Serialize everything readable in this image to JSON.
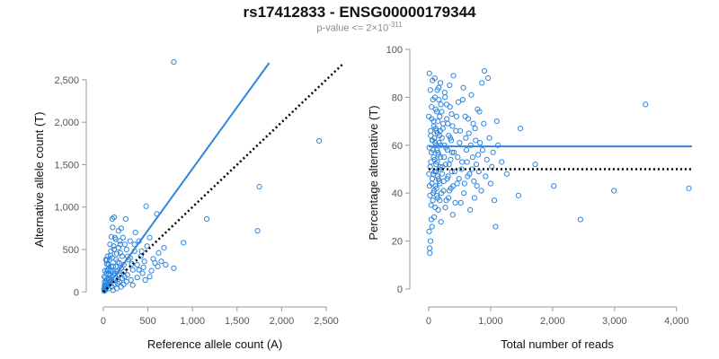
{
  "title": "rs17412833 - ENSG00000179344",
  "subtitle_prefix": "p-value <= 2×10",
  "subtitle_exponent": "-311",
  "colors": {
    "series": "#2f86de",
    "reference_line": "#000000",
    "axis": "#999999"
  },
  "chart_data": [
    {
      "type": "scatter",
      "name": "allele-counts",
      "xlabel": "Reference allele count (A)",
      "ylabel": "Alternative allele count (T)",
      "xlim": [
        -50,
        2550
      ],
      "ylim": [
        -50,
        2700
      ],
      "xticks": [
        0,
        500,
        1000,
        1500,
        2000,
        2500
      ],
      "xtick_labels": [
        "0",
        "500",
        "1,000",
        "1,500",
        "2,000",
        "2,500"
      ],
      "yticks": [
        0,
        500,
        1000,
        1500,
        2000,
        2500
      ],
      "ytick_labels": [
        "0",
        "500",
        "1,000",
        "1,500",
        "2,000",
        "2,500"
      ],
      "fit_line": {
        "x": [
          0,
          1860
        ],
        "y": [
          0,
          2700
        ]
      },
      "reference_line": {
        "x": [
          0,
          2700
        ],
        "y": [
          0,
          2700
        ]
      },
      "points": [
        [
          790,
          2710
        ],
        [
          2420,
          1780
        ],
        [
          1750,
          1240
        ],
        [
          1730,
          720
        ],
        [
          1160,
          860
        ],
        [
          900,
          580
        ],
        [
          790,
          280
        ],
        [
          560,
          390
        ],
        [
          490,
          540
        ],
        [
          520,
          640
        ],
        [
          480,
          1010
        ],
        [
          600,
          920
        ],
        [
          580,
          340
        ],
        [
          450,
          290
        ],
        [
          420,
          420
        ],
        [
          380,
          320
        ],
        [
          350,
          480
        ],
        [
          330,
          260
        ],
        [
          300,
          600
        ],
        [
          280,
          380
        ],
        [
          260,
          500
        ],
        [
          240,
          180
        ],
        [
          220,
          640
        ],
        [
          210,
          420
        ],
        [
          200,
          280
        ],
        [
          190,
          560
        ],
        [
          180,
          120
        ],
        [
          170,
          720
        ],
        [
          160,
          350
        ],
        [
          150,
          450
        ],
        [
          140,
          620
        ],
        [
          130,
          220
        ],
        [
          120,
          880
        ],
        [
          115,
          540
        ],
        [
          110,
          300
        ],
        [
          105,
          760
        ],
        [
          100,
          400
        ],
        [
          95,
          180
        ],
        [
          90,
          650
        ],
        [
          85,
          480
        ],
        [
          80,
          260
        ],
        [
          75,
          560
        ],
        [
          70,
          380
        ],
        [
          65,
          140
        ],
        [
          60,
          320
        ],
        [
          55,
          200
        ],
        [
          50,
          90
        ],
        [
          48,
          420
        ],
        [
          45,
          260
        ],
        [
          42,
          150
        ],
        [
          40,
          60
        ],
        [
          38,
          330
        ],
        [
          35,
          220
        ],
        [
          32,
          110
        ],
        [
          30,
          40
        ],
        [
          28,
          380
        ],
        [
          25,
          170
        ],
        [
          22,
          80
        ],
        [
          20,
          20
        ],
        [
          18,
          250
        ],
        [
          15,
          120
        ],
        [
          12,
          50
        ],
        [
          10,
          180
        ],
        [
          8,
          30
        ],
        [
          650,
          360
        ],
        [
          700,
          320
        ],
        [
          620,
          460
        ],
        [
          680,
          520
        ],
        [
          360,
          700
        ],
        [
          250,
          860
        ],
        [
          310,
          140
        ],
        [
          270,
          200
        ],
        [
          230,
          320
        ],
        [
          400,
          600
        ],
        [
          440,
          220
        ],
        [
          520,
          180
        ],
        [
          180,
          200
        ],
        [
          160,
          100
        ],
        [
          140,
          160
        ],
        [
          125,
          90
        ],
        [
          95,
          60
        ],
        [
          70,
          120
        ],
        [
          60,
          40
        ],
        [
          45,
          100
        ],
        [
          35,
          70
        ],
        [
          25,
          30
        ],
        [
          15,
          80
        ],
        [
          10,
          10
        ],
        [
          330,
          80
        ],
        [
          260,
          120
        ],
        [
          200,
          60
        ],
        [
          150,
          40
        ],
        [
          110,
          20
        ],
        [
          180,
          340
        ],
        [
          230,
          240
        ],
        [
          300,
          400
        ],
        [
          350,
          560
        ],
        [
          400,
          260
        ],
        [
          460,
          360
        ],
        [
          120,
          500
        ],
        [
          90,
          300
        ],
        [
          75,
          200
        ],
        [
          200,
          750
        ],
        [
          240,
          560
        ],
        [
          130,
          640
        ],
        [
          100,
          860
        ],
        [
          160,
          240
        ],
        [
          80,
          430
        ],
        [
          60,
          160
        ],
        [
          50,
          250
        ],
        [
          40,
          380
        ],
        [
          30,
          120
        ],
        [
          20,
          60
        ],
        [
          270,
          420
        ],
        [
          320,
          330
        ],
        [
          380,
          170
        ],
        [
          430,
          480
        ],
        [
          470,
          140
        ],
        [
          540,
          250
        ],
        [
          610,
          300
        ],
        [
          190,
          460
        ],
        [
          210,
          160
        ],
        [
          170,
          520
        ],
        [
          140,
          300
        ],
        [
          115,
          200
        ],
        [
          55,
          330
        ],
        [
          65,
          90
        ],
        [
          85,
          140
        ],
        [
          105,
          240
        ],
        [
          145,
          380
        ],
        [
          165,
          150
        ],
        [
          185,
          600
        ],
        [
          230,
          90
        ]
      ]
    },
    {
      "type": "scatter",
      "name": "percentage-alternative",
      "xlabel": "Total number of reads",
      "ylabel": "Percentage alternative (T)",
      "xlim": [
        -100,
        4250
      ],
      "ylim": [
        -3,
        100
      ],
      "xticks": [
        0,
        1000,
        2000,
        3000,
        4000
      ],
      "xtick_labels": [
        "0",
        "1,000",
        "2,000",
        "3,000",
        "4,000"
      ],
      "yticks": [
        0,
        20,
        40,
        60,
        80,
        100
      ],
      "ytick_labels": [
        "0",
        "20",
        "40",
        "60",
        "80",
        "100"
      ],
      "fit_line": {
        "x": [
          0,
          4250
        ],
        "y": [
          59.5,
          59.5
        ]
      },
      "reference_line": {
        "x": [
          0,
          4250
        ],
        "y": [
          50,
          50
        ]
      },
      "points": [
        [
          4200,
          42
        ],
        [
          3500,
          77
        ],
        [
          2990,
          41
        ],
        [
          2450,
          29
        ],
        [
          2020,
          43
        ],
        [
          1720,
          52
        ],
        [
          1480,
          67
        ],
        [
          1450,
          39
        ],
        [
          1260,
          48
        ],
        [
          1080,
          26
        ],
        [
          1100,
          70
        ],
        [
          1040,
          57
        ],
        [
          960,
          88
        ],
        [
          900,
          91
        ],
        [
          860,
          86
        ],
        [
          820,
          74
        ],
        [
          800,
          56
        ],
        [
          780,
          43
        ],
        [
          760,
          62
        ],
        [
          740,
          38
        ],
        [
          720,
          69
        ],
        [
          700,
          50
        ],
        [
          690,
          81
        ],
        [
          670,
          33
        ],
        [
          650,
          65
        ],
        [
          630,
          47
        ],
        [
          610,
          58
        ],
        [
          590,
          72
        ],
        [
          570,
          40
        ],
        [
          560,
          84
        ],
        [
          540,
          53
        ],
        [
          520,
          36
        ],
        [
          500,
          61
        ],
        [
          480,
          78
        ],
        [
          460,
          44
        ],
        [
          440,
          66
        ],
        [
          420,
          49
        ],
        [
          400,
          89
        ],
        [
          390,
          31
        ],
        [
          380,
          57
        ],
        [
          370,
          73
        ],
        [
          360,
          42
        ],
        [
          350,
          63
        ],
        [
          340,
          85
        ],
        [
          330,
          52
        ],
        [
          320,
          38
        ],
        [
          310,
          69
        ],
        [
          300,
          46
        ],
        [
          290,
          77
        ],
        [
          280,
          59
        ],
        [
          270,
          34
        ],
        [
          260,
          82
        ],
        [
          250,
          55
        ],
        [
          240,
          41
        ],
        [
          230,
          67
        ],
        [
          220,
          48
        ],
        [
          210,
          74
        ],
        [
          200,
          28
        ],
        [
          195,
          60
        ],
        [
          190,
          86
        ],
        [
          185,
          51
        ],
        [
          180,
          37
        ],
        [
          175,
          64
        ],
        [
          170,
          45
        ],
        [
          165,
          79
        ],
        [
          160,
          56
        ],
        [
          155,
          33
        ],
        [
          150,
          70
        ],
        [
          145,
          47
        ],
        [
          140,
          83
        ],
        [
          135,
          58
        ],
        [
          130,
          39
        ],
        [
          125,
          66
        ],
        [
          120,
          52
        ],
        [
          115,
          75
        ],
        [
          110,
          43
        ],
        [
          105,
          61
        ],
        [
          100,
          88
        ],
        [
          95,
          49
        ],
        [
          90,
          30
        ],
        [
          85,
          68
        ],
        [
          80,
          55
        ],
        [
          75,
          40
        ],
        [
          70,
          79
        ],
        [
          65,
          62
        ],
        [
          60,
          46
        ],
        [
          55,
          26
        ],
        [
          50,
          71
        ],
        [
          45,
          57
        ],
        [
          40,
          35
        ],
        [
          35,
          64
        ],
        [
          30,
          20
        ],
        [
          25,
          51
        ],
        [
          20,
          15
        ],
        [
          15,
          43
        ],
        [
          12,
          90
        ],
        [
          10,
          59
        ],
        [
          8,
          24
        ],
        [
          5,
          48
        ],
        [
          3,
          72
        ],
        [
          18,
          17
        ],
        [
          22,
          39
        ],
        [
          28,
          83
        ],
        [
          33,
          66
        ],
        [
          38,
          53
        ],
        [
          43,
          29
        ],
        [
          48,
          76
        ],
        [
          53,
          44
        ],
        [
          58,
          62
        ],
        [
          63,
          87
        ],
        [
          68,
          37
        ],
        [
          73,
          58
        ],
        [
          78,
          48
        ],
        [
          83,
          70
        ],
        [
          88,
          41
        ],
        [
          93,
          63
        ],
        [
          98,
          54
        ],
        [
          103,
          80
        ],
        [
          108,
          34
        ],
        [
          113,
          67
        ],
        [
          118,
          49
        ],
        [
          123,
          60
        ],
        [
          128,
          42
        ],
        [
          133,
          74
        ],
        [
          138,
          53
        ],
        [
          143,
          65
        ],
        [
          148,
          38
        ],
        [
          153,
          57
        ],
        [
          158,
          46
        ],
        [
          163,
          84
        ],
        [
          168,
          61
        ],
        [
          173,
          50
        ],
        [
          178,
          72
        ],
        [
          183,
          44
        ],
        [
          188,
          66
        ],
        [
          193,
          55
        ],
        [
          198,
          77
        ],
        [
          205,
          40
        ],
        [
          215,
          63
        ],
        [
          225,
          51
        ],
        [
          235,
          69
        ],
        [
          245,
          45
        ],
        [
          255,
          60
        ],
        [
          265,
          80
        ],
        [
          275,
          52
        ],
        [
          285,
          37
        ],
        [
          295,
          71
        ],
        [
          305,
          58
        ],
        [
          315,
          47
        ],
        [
          325,
          64
        ],
        [
          335,
          41
        ],
        [
          345,
          76
        ],
        [
          355,
          54
        ],
        [
          365,
          62
        ],
        [
          375,
          49
        ],
        [
          385,
          68
        ],
        [
          395,
          43
        ],
        [
          410,
          57
        ],
        [
          430,
          36
        ],
        [
          450,
          72
        ],
        [
          470,
          55
        ],
        [
          490,
          46
        ],
        [
          510,
          66
        ],
        [
          530,
          50
        ],
        [
          550,
          79
        ],
        [
          580,
          44
        ],
        [
          600,
          63
        ],
        [
          620,
          53
        ],
        [
          640,
          71
        ],
        [
          660,
          48
        ],
        [
          680,
          60
        ],
        [
          710,
          55
        ],
        [
          730,
          45
        ],
        [
          750,
          67
        ],
        [
          770,
          52
        ],
        [
          790,
          75
        ],
        [
          810,
          49
        ],
        [
          830,
          61
        ],
        [
          850,
          41
        ],
        [
          870,
          58
        ],
        [
          890,
          69
        ],
        [
          920,
          47
        ],
        [
          940,
          54
        ],
        [
          980,
          63
        ],
        [
          1000,
          44
        ],
        [
          1020,
          51
        ],
        [
          1060,
          37
        ],
        [
          1120,
          60
        ],
        [
          1180,
          53
        ]
      ]
    }
  ]
}
